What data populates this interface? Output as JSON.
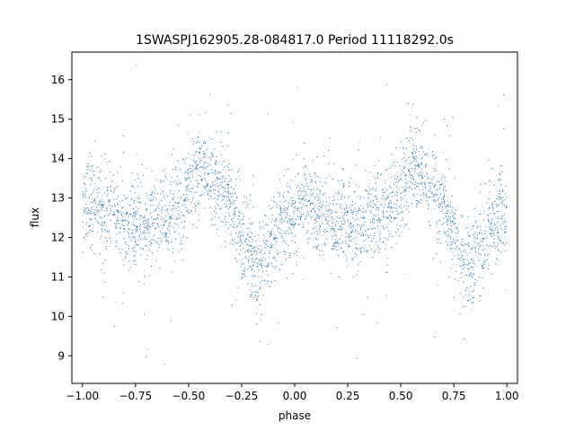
{
  "chart_data": {
    "type": "scatter",
    "title": "1SWASPJ162905.28-084817.0 Period 11118292.0s",
    "xlabel": "phase",
    "ylabel": "flux",
    "xlim": [
      -1.05,
      1.05
    ],
    "ylim": [
      8.3,
      16.7
    ],
    "xticks": [
      -1.0,
      -0.75,
      -0.5,
      -0.25,
      0.0,
      0.25,
      0.5,
      0.75,
      1.0
    ],
    "xtick_labels": [
      "−1.00",
      "−0.75",
      "−0.50",
      "−0.25",
      "0.00",
      "0.25",
      "0.50",
      "0.75",
      "1.00"
    ],
    "yticks": [
      9,
      10,
      11,
      12,
      13,
      14,
      15,
      16
    ],
    "ytick_labels": [
      "9",
      "10",
      "11",
      "12",
      "13",
      "14",
      "15",
      "16"
    ],
    "grid": false,
    "marker_color": "#1f77b4",
    "series": [
      {
        "phase_profile": [
          {
            "x": 0.0,
            "y": 12.7
          },
          {
            "x": 0.05,
            "y": 12.9
          },
          {
            "x": 0.1,
            "y": 12.5
          },
          {
            "x": 0.15,
            "y": 12.6
          },
          {
            "x": 0.2,
            "y": 12.3
          },
          {
            "x": 0.25,
            "y": 12.4
          },
          {
            "x": 0.3,
            "y": 12.2
          },
          {
            "x": 0.35,
            "y": 12.6
          },
          {
            "x": 0.4,
            "y": 12.6
          },
          {
            "x": 0.45,
            "y": 12.8
          },
          {
            "x": 0.5,
            "y": 13.2
          },
          {
            "x": 0.55,
            "y": 13.8
          },
          {
            "x": 0.6,
            "y": 13.6
          },
          {
            "x": 0.65,
            "y": 13.2
          },
          {
            "x": 0.7,
            "y": 12.8
          },
          {
            "x": 0.75,
            "y": 12.0
          },
          {
            "x": 0.8,
            "y": 11.6
          },
          {
            "x": 0.83,
            "y": 11.1
          },
          {
            "x": 0.88,
            "y": 11.8
          },
          {
            "x": 0.93,
            "y": 12.3
          },
          {
            "x": 1.0,
            "y": 12.7
          }
        ]
      }
    ]
  }
}
